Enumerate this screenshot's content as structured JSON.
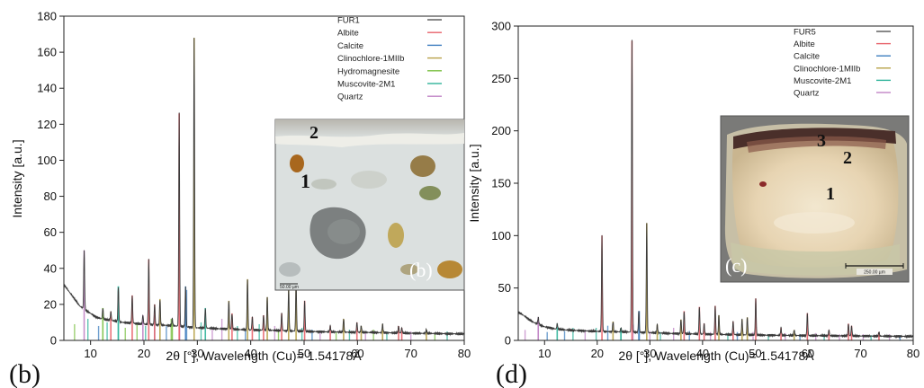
{
  "chart_data": [
    {
      "type": "line",
      "panel_label": "(b)",
      "xlabel": "2θ [°], Wavelength (Cu)= 1.54178Å",
      "ylabel": "Intensity [a.u.]",
      "xlim": [
        5,
        80
      ],
      "ylim": [
        0,
        180
      ],
      "xticks": [
        "10",
        "20",
        "30",
        "40",
        "50",
        "60",
        "70",
        "80"
      ],
      "yticks": [
        "0",
        "20",
        "40",
        "60",
        "80",
        "100",
        "120",
        "140",
        "160",
        "180"
      ],
      "xtick_values": [
        10,
        20,
        30,
        40,
        50,
        60,
        70,
        80
      ],
      "ytick_values": [
        0,
        20,
        40,
        60,
        80,
        100,
        120,
        140,
        160,
        180
      ],
      "legend": [
        {
          "name": "FUR1",
          "color": "#555555"
        },
        {
          "name": "Albite",
          "color": "#e8636b"
        },
        {
          "name": "Calcite",
          "color": "#3f7fc0"
        },
        {
          "name": "Clinochlore-1MIIb",
          "color": "#b8a24a"
        },
        {
          "name": "Hydromagnesite",
          "color": "#7cc144"
        },
        {
          "name": "Muscovite-2M1",
          "color": "#2fb39a"
        },
        {
          "name": "Quartz",
          "color": "#c184c6"
        }
      ],
      "background": [
        [
          5,
          31
        ],
        [
          6,
          27
        ],
        [
          7,
          23
        ],
        [
          8,
          19
        ],
        [
          9,
          17
        ],
        [
          10,
          15
        ],
        [
          11,
          13
        ],
        [
          12,
          12
        ],
        [
          14,
          11
        ],
        [
          16,
          10
        ],
        [
          18,
          9.5
        ],
        [
          20,
          9
        ],
        [
          22,
          8.7
        ],
        [
          24,
          8.4
        ],
        [
          26,
          8
        ],
        [
          28,
          7.5
        ],
        [
          30,
          7
        ],
        [
          32,
          6.8
        ],
        [
          34,
          6.5
        ],
        [
          36,
          6.3
        ],
        [
          38,
          6
        ],
        [
          40,
          5.8
        ],
        [
          42,
          5.7
        ],
        [
          44,
          5.6
        ],
        [
          46,
          5.4
        ],
        [
          48,
          5.2
        ],
        [
          50,
          5
        ],
        [
          55,
          4.7
        ],
        [
          60,
          4.5
        ],
        [
          65,
          4.3
        ],
        [
          70,
          4
        ],
        [
          75,
          3.8
        ],
        [
          80,
          3.6
        ]
      ],
      "peaks": [
        {
          "x": 8.8,
          "y": 50,
          "c": 5
        },
        {
          "x": 12.3,
          "y": 18,
          "c": 3
        },
        {
          "x": 13.8,
          "y": 16,
          "c": 0
        },
        {
          "x": 15.2,
          "y": 30,
          "c": 4
        },
        {
          "x": 17.8,
          "y": 25,
          "c": 0
        },
        {
          "x": 19.8,
          "y": 14,
          "c": 5
        },
        {
          "x": 20.9,
          "y": 45,
          "c": 6
        },
        {
          "x": 22.0,
          "y": 20,
          "c": 0
        },
        {
          "x": 23.0,
          "y": 23,
          "c": 2
        },
        {
          "x": 25.3,
          "y": 12,
          "c": 3
        },
        {
          "x": 26.6,
          "y": 126,
          "c": 6
        },
        {
          "x": 27.8,
          "y": 30,
          "c": 1
        },
        {
          "x": 29.4,
          "y": 168,
          "c": 2
        },
        {
          "x": 31.5,
          "y": 18,
          "c": 4
        },
        {
          "x": 35.9,
          "y": 22,
          "c": 2
        },
        {
          "x": 36.5,
          "y": 15,
          "c": 6
        },
        {
          "x": 39.4,
          "y": 34,
          "c": 2
        },
        {
          "x": 40.3,
          "y": 13,
          "c": 6
        },
        {
          "x": 42.4,
          "y": 14,
          "c": 6
        },
        {
          "x": 43.1,
          "y": 24,
          "c": 2
        },
        {
          "x": 45.8,
          "y": 15,
          "c": 6
        },
        {
          "x": 47.1,
          "y": 29,
          "c": 2
        },
        {
          "x": 48.5,
          "y": 32,
          "c": 2
        },
        {
          "x": 50.1,
          "y": 22,
          "c": 6
        },
        {
          "x": 54.9,
          "y": 8,
          "c": 6
        },
        {
          "x": 57.4,
          "y": 12,
          "c": 2
        },
        {
          "x": 59.9,
          "y": 10,
          "c": 6
        },
        {
          "x": 60.7,
          "y": 8,
          "c": 2
        },
        {
          "x": 64.7,
          "y": 9,
          "c": 2
        },
        {
          "x": 67.7,
          "y": 8,
          "c": 6
        },
        {
          "x": 68.3,
          "y": 7,
          "c": 6
        },
        {
          "x": 72.9,
          "y": 6,
          "c": 2
        }
      ],
      "ref_lines": [
        {
          "x": 7.0,
          "y": 9,
          "c": 3
        },
        {
          "x": 9.5,
          "y": 12,
          "c": 4
        },
        {
          "x": 11.5,
          "y": 8,
          "c": 1
        },
        {
          "x": 13.1,
          "y": 10,
          "c": 4
        },
        {
          "x": 15.2,
          "y": 30,
          "c": 4
        },
        {
          "x": 16.5,
          "y": 7,
          "c": 3
        },
        {
          "x": 18.7,
          "y": 9,
          "c": 3
        },
        {
          "x": 20.3,
          "y": 8,
          "c": 4
        },
        {
          "x": 22.0,
          "y": 14,
          "c": 1
        },
        {
          "x": 24.2,
          "y": 8,
          "c": 1
        },
        {
          "x": 25.1,
          "y": 12,
          "c": 3
        },
        {
          "x": 26.7,
          "y": 15,
          "c": 5
        },
        {
          "x": 28.0,
          "y": 28,
          "c": 1
        },
        {
          "x": 30.7,
          "y": 10,
          "c": 4
        },
        {
          "x": 32.8,
          "y": 7,
          "c": 5
        },
        {
          "x": 34.6,
          "y": 12,
          "c": 5
        },
        {
          "x": 37.5,
          "y": 8,
          "c": 4
        },
        {
          "x": 39.0,
          "y": 6,
          "c": 1
        },
        {
          "x": 41.6,
          "y": 9,
          "c": 4
        },
        {
          "x": 44.5,
          "y": 8,
          "c": 5
        },
        {
          "x": 45.2,
          "y": 6,
          "c": 3
        },
        {
          "x": 49.6,
          "y": 7,
          "c": 4
        },
        {
          "x": 51.5,
          "y": 6,
          "c": 1
        },
        {
          "x": 53.0,
          "y": 5,
          "c": 5
        },
        {
          "x": 56.0,
          "y": 5,
          "c": 3
        },
        {
          "x": 58.5,
          "y": 6,
          "c": 4
        },
        {
          "x": 61.5,
          "y": 5,
          "c": 5
        },
        {
          "x": 63.0,
          "y": 6,
          "c": 3
        },
        {
          "x": 65.5,
          "y": 5,
          "c": 4
        },
        {
          "x": 70.0,
          "y": 5,
          "c": 5
        },
        {
          "x": 74.5,
          "y": 4,
          "c": 3
        },
        {
          "x": 76.8,
          "y": 5,
          "c": 4
        }
      ],
      "inset": {
        "label": "(b)",
        "markers": [
          "1",
          "2"
        ],
        "scale_text": "50.00 µm"
      }
    },
    {
      "type": "line",
      "panel_label": "(d)",
      "xlabel": "2θ [°], Wavelength (Cu)= 1.54178Å",
      "ylabel": "Intensity [a.u.]",
      "xlim": [
        5,
        80
      ],
      "ylim": [
        0,
        300
      ],
      "xticks": [
        "10",
        "20",
        "30",
        "40",
        "50",
        "60",
        "70",
        "80"
      ],
      "yticks": [
        "0",
        "50",
        "100",
        "150",
        "200",
        "250",
        "300"
      ],
      "xtick_values": [
        10,
        20,
        30,
        40,
        50,
        60,
        70,
        80
      ],
      "ytick_values": [
        0,
        50,
        100,
        150,
        200,
        250,
        300
      ],
      "legend": [
        {
          "name": "FUR5",
          "color": "#555555"
        },
        {
          "name": "Albite",
          "color": "#e8636b"
        },
        {
          "name": "Calcite",
          "color": "#3f7fc0"
        },
        {
          "name": "Clinochlore-1MIIb",
          "color": "#b8a24a"
        },
        {
          "name": "Muscovite-2M1",
          "color": "#2fb39a"
        },
        {
          "name": "Quartz",
          "color": "#c184c6"
        }
      ],
      "background": [
        [
          5,
          27
        ],
        [
          6,
          24
        ],
        [
          7,
          20
        ],
        [
          8,
          17
        ],
        [
          9,
          15
        ],
        [
          10,
          13
        ],
        [
          11,
          12
        ],
        [
          12,
          11
        ],
        [
          14,
          10
        ],
        [
          16,
          9.5
        ],
        [
          18,
          9
        ],
        [
          20,
          8.6
        ],
        [
          22,
          8.4
        ],
        [
          24,
          8.2
        ],
        [
          26,
          8
        ],
        [
          28,
          7.7
        ],
        [
          30,
          7.4
        ],
        [
          32,
          7
        ],
        [
          34,
          6.6
        ],
        [
          36,
          6.4
        ],
        [
          38,
          6.2
        ],
        [
          40,
          6
        ],
        [
          42,
          5.8
        ],
        [
          44,
          5.6
        ],
        [
          46,
          5.5
        ],
        [
          48,
          5.3
        ],
        [
          50,
          5.1
        ],
        [
          55,
          4.8
        ],
        [
          60,
          4.6
        ],
        [
          65,
          4.4
        ],
        [
          70,
          4.2
        ],
        [
          75,
          4
        ],
        [
          80,
          3.8
        ]
      ],
      "peaks": [
        {
          "x": 8.8,
          "y": 22,
          "c": 4
        },
        {
          "x": 12.4,
          "y": 16,
          "c": 3
        },
        {
          "x": 20.9,
          "y": 100,
          "c": 5
        },
        {
          "x": 23.0,
          "y": 18,
          "c": 2
        },
        {
          "x": 24.5,
          "y": 12,
          "c": 3
        },
        {
          "x": 26.6,
          "y": 286,
          "c": 5
        },
        {
          "x": 27.9,
          "y": 28,
          "c": 1
        },
        {
          "x": 29.4,
          "y": 112,
          "c": 2
        },
        {
          "x": 31.4,
          "y": 15,
          "c": 2
        },
        {
          "x": 35.9,
          "y": 20,
          "c": 2
        },
        {
          "x": 36.5,
          "y": 28,
          "c": 5
        },
        {
          "x": 39.4,
          "y": 32,
          "c": 5
        },
        {
          "x": 40.3,
          "y": 16,
          "c": 5
        },
        {
          "x": 42.4,
          "y": 33,
          "c": 5
        },
        {
          "x": 43.1,
          "y": 24,
          "c": 2
        },
        {
          "x": 45.8,
          "y": 18,
          "c": 5
        },
        {
          "x": 47.5,
          "y": 20,
          "c": 2
        },
        {
          "x": 48.5,
          "y": 22,
          "c": 2
        },
        {
          "x": 50.1,
          "y": 40,
          "c": 5
        },
        {
          "x": 54.9,
          "y": 12,
          "c": 5
        },
        {
          "x": 57.4,
          "y": 10,
          "c": 2
        },
        {
          "x": 59.9,
          "y": 26,
          "c": 5
        },
        {
          "x": 64.0,
          "y": 10,
          "c": 5
        },
        {
          "x": 67.7,
          "y": 16,
          "c": 5
        },
        {
          "x": 68.3,
          "y": 14,
          "c": 5
        },
        {
          "x": 73.5,
          "y": 8,
          "c": 5
        }
      ],
      "ref_lines": [
        {
          "x": 6.3,
          "y": 10,
          "c": 4
        },
        {
          "x": 8.8,
          "y": 22,
          "c": 4
        },
        {
          "x": 10.5,
          "y": 8,
          "c": 1
        },
        {
          "x": 13.8,
          "y": 9,
          "c": 1
        },
        {
          "x": 15.4,
          "y": 12,
          "c": 3
        },
        {
          "x": 17.7,
          "y": 10,
          "c": 4
        },
        {
          "x": 19.8,
          "y": 12,
          "c": 3
        },
        {
          "x": 22.0,
          "y": 14,
          "c": 1
        },
        {
          "x": 24.5,
          "y": 12,
          "c": 3
        },
        {
          "x": 26.8,
          "y": 15,
          "c": 4
        },
        {
          "x": 28.0,
          "y": 28,
          "c": 1
        },
        {
          "x": 30.0,
          "y": 9,
          "c": 4
        },
        {
          "x": 32.0,
          "y": 8,
          "c": 3
        },
        {
          "x": 34.5,
          "y": 12,
          "c": 4
        },
        {
          "x": 37.5,
          "y": 9,
          "c": 1
        },
        {
          "x": 41.5,
          "y": 8,
          "c": 4
        },
        {
          "x": 44.8,
          "y": 7,
          "c": 3
        },
        {
          "x": 46.6,
          "y": 8,
          "c": 1
        },
        {
          "x": 49.6,
          "y": 8,
          "c": 4
        },
        {
          "x": 52.5,
          "y": 6,
          "c": 3
        },
        {
          "x": 55.7,
          "y": 7,
          "c": 4
        },
        {
          "x": 58.5,
          "y": 6,
          "c": 1
        },
        {
          "x": 61.5,
          "y": 7,
          "c": 4
        },
        {
          "x": 63.1,
          "y": 6,
          "c": 3
        },
        {
          "x": 66.0,
          "y": 6,
          "c": 4
        },
        {
          "x": 70.5,
          "y": 6,
          "c": 4
        },
        {
          "x": 72.0,
          "y": 5,
          "c": 3
        },
        {
          "x": 75.5,
          "y": 6,
          "c": 4
        },
        {
          "x": 77.5,
          "y": 5,
          "c": 1
        }
      ],
      "inset": {
        "label": "(c)",
        "markers": [
          "1",
          "2",
          "3"
        ],
        "scale_text": "250.00 µm"
      }
    }
  ]
}
